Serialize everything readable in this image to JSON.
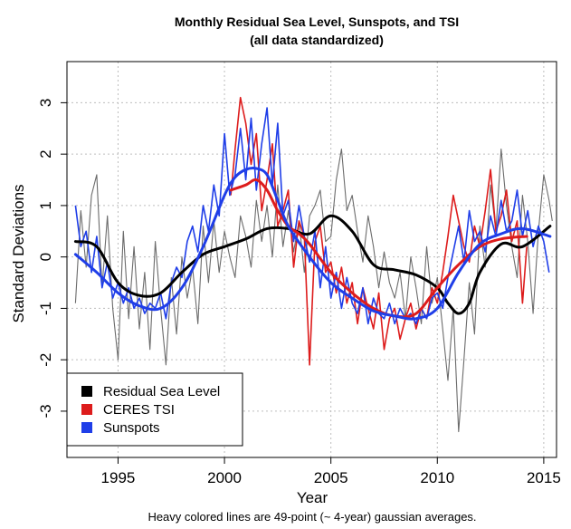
{
  "chart_data": {
    "type": "line",
    "title": "Monthly Residual Sea Level, Sunspots, and TSI",
    "subtitle": "(all data standardized)",
    "xlabel": "Year",
    "ylabel": "Standard Deviations",
    "note": "Heavy colored lines are 49-point (~ 4-year) gaussian averages.",
    "xlim": [
      1992.6,
      2015.6
    ],
    "ylim": [
      -3.9,
      3.8
    ],
    "xticks": [
      1995,
      2000,
      2005,
      2010,
      2015
    ],
    "yticks": [
      -3,
      -2,
      -1,
      0,
      1,
      2,
      3
    ],
    "grid": true,
    "legend_position": "bottom-left",
    "series": [
      {
        "name": "Residual Sea Level",
        "color": "#000000",
        "smooth_x": [
          1993,
          1994,
          1995,
          1996,
          1997,
          1998,
          1999,
          2000,
          2001,
          2002,
          2003,
          2004,
          2005,
          2006,
          2007,
          2008,
          2009,
          2010,
          2010.5,
          2011,
          2011.5,
          2012,
          2013,
          2014,
          2015.3
        ],
        "smooth_y": [
          0.3,
          0.2,
          -0.5,
          -0.75,
          -0.7,
          -0.3,
          0.05,
          0.2,
          0.35,
          0.55,
          0.55,
          0.45,
          0.8,
          0.5,
          -0.15,
          -0.25,
          -0.35,
          -0.6,
          -0.9,
          -1.1,
          -0.9,
          -0.3,
          0.25,
          0.2,
          0.6
        ],
        "raw_x": [
          1993.0,
          1993.25,
          1993.5,
          1993.75,
          1994.0,
          1994.25,
          1994.5,
          1994.75,
          1995.0,
          1995.25,
          1995.5,
          1995.75,
          1996.0,
          1996.25,
          1996.5,
          1996.75,
          1997.0,
          1997.25,
          1997.5,
          1997.75,
          1998.0,
          1998.25,
          1998.5,
          1998.75,
          1999.0,
          1999.25,
          1999.5,
          1999.75,
          2000.0,
          2000.25,
          2000.5,
          2000.75,
          2001.0,
          2001.25,
          2001.5,
          2001.75,
          2002.0,
          2002.25,
          2002.5,
          2002.75,
          2003.0,
          2003.25,
          2003.5,
          2003.75,
          2004.0,
          2004.25,
          2004.5,
          2004.75,
          2005.0,
          2005.25,
          2005.5,
          2005.75,
          2006.0,
          2006.25,
          2006.5,
          2006.75,
          2007.0,
          2007.25,
          2007.5,
          2007.75,
          2008.0,
          2008.25,
          2008.5,
          2008.75,
          2009.0,
          2009.25,
          2009.5,
          2009.75,
          2010.0,
          2010.25,
          2010.5,
          2010.75,
          2011.0,
          2011.25,
          2011.5,
          2011.75,
          2012.0,
          2012.25,
          2012.5,
          2012.75,
          2013.0,
          2013.25,
          2013.5,
          2013.75,
          2014.0,
          2014.25,
          2014.5,
          2014.75,
          2015.0,
          2015.25,
          2015.4
        ],
        "raw_y": [
          -0.9,
          0.9,
          -0.2,
          1.2,
          1.6,
          -0.6,
          0.8,
          -1.0,
          -2.0,
          0.5,
          -1.2,
          0.2,
          -1.4,
          -0.3,
          -1.8,
          0.3,
          -1.0,
          -2.1,
          -0.4,
          -1.5,
          0.0,
          -0.8,
          -0.2,
          -1.3,
          0.6,
          -0.5,
          0.7,
          -0.3,
          0.5,
          0.0,
          -0.4,
          0.8,
          0.4,
          -0.2,
          1.1,
          0.3,
          1.0,
          0.0,
          1.4,
          0.2,
          0.9,
          0.1,
          0.7,
          -0.3,
          0.8,
          1.0,
          1.3,
          0.3,
          0.4,
          1.5,
          2.1,
          0.9,
          1.2,
          0.5,
          -0.1,
          0.8,
          0.2,
          -0.6,
          0.1,
          -0.5,
          -0.8,
          -0.3,
          -1.2,
          0.0,
          -0.6,
          -1.3,
          0.2,
          -0.9,
          -0.4,
          -1.4,
          -2.4,
          -1.0,
          -3.4,
          -2.0,
          -0.5,
          -1.5,
          0.6,
          -0.2,
          1.4,
          0.5,
          2.1,
          1.0,
          0.2,
          -0.4,
          1.2,
          0.3,
          -1.1,
          0.5,
          1.6,
          1.1,
          0.7
        ]
      },
      {
        "name": "CERES TSI",
        "color": "#dd1c1c",
        "smooth_x": [
          2000.3,
          2001,
          2001.5,
          2002,
          2002.5,
          2003,
          2003.5,
          2004,
          2005,
          2006,
          2007,
          2008,
          2009,
          2010,
          2011,
          2012,
          2013,
          2014.2
        ],
        "smooth_y": [
          1.3,
          1.4,
          1.5,
          1.3,
          0.9,
          0.6,
          0.45,
          0.25,
          -0.3,
          -0.7,
          -1.0,
          -1.15,
          -1.1,
          -0.6,
          -0.15,
          0.2,
          0.35,
          0.4
        ],
        "raw_x": [
          2000.3,
          2000.5,
          2000.75,
          2001.0,
          2001.25,
          2001.5,
          2001.75,
          2002.0,
          2002.25,
          2002.5,
          2002.75,
          2003.0,
          2003.25,
          2003.5,
          2003.75,
          2004.0,
          2004.25,
          2004.5,
          2004.75,
          2005.0,
          2005.25,
          2005.5,
          2005.75,
          2006.0,
          2006.25,
          2006.5,
          2006.75,
          2007.0,
          2007.25,
          2007.5,
          2007.75,
          2008.0,
          2008.25,
          2008.5,
          2008.75,
          2009.0,
          2009.25,
          2009.5,
          2009.75,
          2010.0,
          2010.25,
          2010.5,
          2010.75,
          2011.0,
          2011.25,
          2011.5,
          2011.75,
          2012.0,
          2012.25,
          2012.5,
          2012.75,
          2013.0,
          2013.25,
          2013.5,
          2013.75,
          2014.0,
          2014.2
        ],
        "raw_y": [
          1.2,
          2.1,
          3.1,
          2.6,
          1.8,
          2.4,
          0.9,
          1.5,
          2.2,
          0.6,
          0.9,
          1.3,
          -0.2,
          0.7,
          0.4,
          -2.1,
          0.3,
          0.6,
          -0.3,
          -0.1,
          -0.7,
          -0.2,
          -0.9,
          -0.5,
          -1.3,
          -0.6,
          -1.0,
          -1.4,
          -0.7,
          -1.8,
          -1.2,
          -1.0,
          -1.6,
          -1.2,
          -0.9,
          -1.4,
          -1.0,
          -1.2,
          -0.6,
          -0.9,
          -0.3,
          0.4,
          1.2,
          0.7,
          0.2,
          -0.1,
          0.6,
          0.2,
          0.9,
          1.7,
          0.5,
          0.8,
          1.3,
          0.3,
          0.7,
          -0.9,
          0.2
        ]
      },
      {
        "name": "Sunspots",
        "color": "#1f3ee8",
        "smooth_x": [
          1993,
          1994,
          1995,
          1996,
          1997,
          1998,
          1999,
          2000,
          2000.5,
          2001,
          2001.5,
          2002,
          2002.5,
          2003,
          2004,
          2005,
          2006,
          2007,
          2008,
          2009,
          2010,
          2011,
          2012,
          2013,
          2014,
          2015.3
        ],
        "smooth_y": [
          0.05,
          -0.3,
          -0.7,
          -0.95,
          -1.0,
          -0.6,
          0.2,
          1.2,
          1.55,
          1.7,
          1.72,
          1.6,
          1.1,
          0.6,
          0.0,
          -0.5,
          -0.8,
          -1.05,
          -1.15,
          -1.2,
          -1.0,
          -0.3,
          0.25,
          0.45,
          0.55,
          0.4
        ],
        "raw_x": [
          1993.0,
          1993.25,
          1993.5,
          1993.75,
          1994.0,
          1994.25,
          1994.5,
          1994.75,
          1995.0,
          1995.25,
          1995.5,
          1995.75,
          1996.0,
          1996.25,
          1996.5,
          1996.75,
          1997.0,
          1997.25,
          1997.5,
          1997.75,
          1998.0,
          1998.25,
          1998.5,
          1998.75,
          1999.0,
          1999.25,
          1999.5,
          1999.75,
          2000.0,
          2000.25,
          2000.5,
          2000.75,
          2001.0,
          2001.25,
          2001.5,
          2001.75,
          2002.0,
          2002.25,
          2002.5,
          2002.75,
          2003.0,
          2003.25,
          2003.5,
          2003.75,
          2004.0,
          2004.25,
          2004.5,
          2004.75,
          2005.0,
          2005.25,
          2005.5,
          2005.75,
          2006.0,
          2006.25,
          2006.5,
          2006.75,
          2007.0,
          2007.25,
          2007.5,
          2007.75,
          2008.0,
          2008.25,
          2008.5,
          2008.75,
          2009.0,
          2009.25,
          2009.5,
          2009.75,
          2010.0,
          2010.25,
          2010.5,
          2010.75,
          2011.0,
          2011.25,
          2011.5,
          2011.75,
          2012.0,
          2012.25,
          2012.5,
          2012.75,
          2013.0,
          2013.25,
          2013.5,
          2013.75,
          2014.0,
          2014.25,
          2014.5,
          2014.75,
          2015.0,
          2015.25
        ],
        "raw_y": [
          1.0,
          0.2,
          0.5,
          -0.3,
          0.4,
          -0.6,
          -0.1,
          -0.8,
          -0.5,
          -0.9,
          -0.6,
          -1.0,
          -0.8,
          -1.1,
          -0.9,
          -1.0,
          -0.7,
          -1.2,
          -0.5,
          -0.2,
          -0.4,
          0.3,
          0.6,
          0.1,
          1.0,
          0.5,
          1.4,
          0.8,
          2.4,
          1.2,
          1.6,
          2.5,
          1.5,
          2.7,
          1.3,
          2.2,
          2.9,
          1.4,
          2.6,
          0.8,
          1.1,
          0.3,
          1.0,
          0.4,
          -0.1,
          0.5,
          -0.6,
          0.2,
          -0.8,
          -0.3,
          -1.0,
          -0.4,
          -0.9,
          -1.1,
          -0.6,
          -1.3,
          -0.8,
          -1.1,
          -1.2,
          -0.9,
          -1.3,
          -1.0,
          -1.2,
          -1.1,
          -1.3,
          -1.0,
          -1.2,
          -0.8,
          -0.7,
          -1.0,
          -0.4,
          0.1,
          0.6,
          -0.1,
          0.9,
          0.3,
          0.5,
          0.1,
          0.8,
          0.4,
          1.1,
          0.5,
          0.7,
          1.3,
          0.4,
          0.9,
          0.2,
          0.6,
          0.3,
          -0.3
        ]
      }
    ]
  }
}
